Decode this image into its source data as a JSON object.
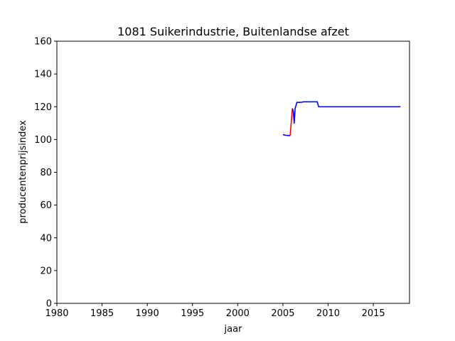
{
  "chart_data": {
    "type": "line",
    "title": "1081 Suikerindustrie, Buitenlandse afzet",
    "xlabel": "jaar",
    "ylabel": "producentenprijsindex",
    "xlim": [
      1980,
      2019
    ],
    "ylim": [
      0,
      160
    ],
    "xticks": [
      1980,
      1985,
      1990,
      1995,
      2000,
      2005,
      2010,
      2015
    ],
    "yticks": [
      0,
      20,
      40,
      60,
      80,
      100,
      120,
      140,
      160
    ],
    "grid": false,
    "series": [
      {
        "color": "#0000ff",
        "points": [
          [
            2005.0,
            103.0
          ],
          [
            2005.3,
            102.6
          ],
          [
            2005.6,
            102.4
          ],
          [
            2005.8,
            102.4
          ]
        ]
      },
      {
        "color": "#ff0000",
        "points": [
          [
            2005.8,
            102.4
          ],
          [
            2006.05,
            119.0
          ]
        ]
      },
      {
        "color": "#0000ff",
        "points": [
          [
            2006.05,
            119.0
          ],
          [
            2006.15,
            117.0
          ],
          [
            2006.25,
            110.0
          ],
          [
            2006.35,
            119.0
          ],
          [
            2006.55,
            122.7
          ],
          [
            2007.0,
            122.7
          ],
          [
            2007.3,
            123.0
          ],
          [
            2008.0,
            123.0
          ],
          [
            2008.8,
            123.0
          ],
          [
            2008.95,
            120.0
          ],
          [
            2010.0,
            120.0
          ],
          [
            2015.0,
            120.0
          ],
          [
            2018.0,
            120.0
          ]
        ]
      }
    ]
  }
}
